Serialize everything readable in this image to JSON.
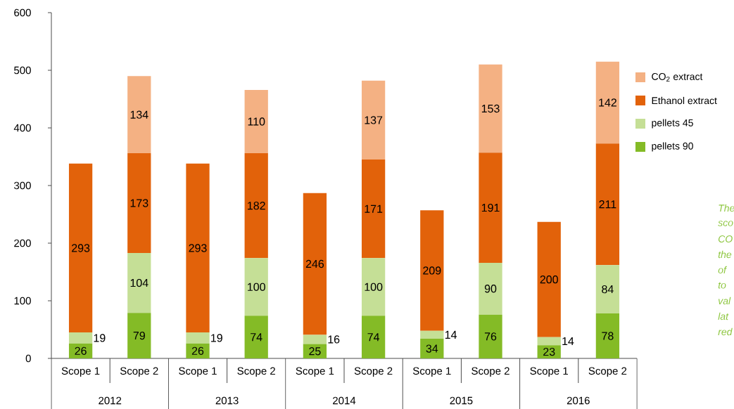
{
  "chart_data": {
    "type": "bar",
    "stacked": true,
    "categories": [
      "Scope 1",
      "Scope 2",
      "Scope 1",
      "Scope 2",
      "Scope 1",
      "Scope 2",
      "Scope 1",
      "Scope 2",
      "Scope 1",
      "Scope 2"
    ],
    "series": [
      {
        "name": "pellets 90",
        "color": "#84bb26",
        "values": [
          26,
          79,
          26,
          74,
          25,
          74,
          34,
          76,
          23,
          78
        ]
      },
      {
        "name": "pellets 45",
        "color": "#c5df96",
        "values": [
          19,
          104,
          19,
          100,
          16,
          100,
          14,
          90,
          14,
          84
        ]
      },
      {
        "name": "Ethanol extract",
        "color": "#e2620a",
        "values": [
          293,
          173,
          293,
          182,
          246,
          171,
          209,
          191,
          200,
          211
        ]
      },
      {
        "name": "CO$_{2}$ extract",
        "color": "#f4b183",
        "values": [
          null,
          134,
          null,
          110,
          null,
          137,
          null,
          153,
          null,
          142
        ]
      }
    ],
    "ylim": [
      0,
      600
    ],
    "yticks": [
      0,
      100,
      200,
      300,
      400,
      500,
      600
    ],
    "data_labels": true,
    "legend": "right",
    "grid": false,
    "annotations": [
      "2012",
      "2013",
      "2014",
      "2015",
      "2016",
      "The",
      "sco",
      "CO",
      "the",
      "of",
      "to",
      "val",
      "lat",
      "red"
    ]
  }
}
